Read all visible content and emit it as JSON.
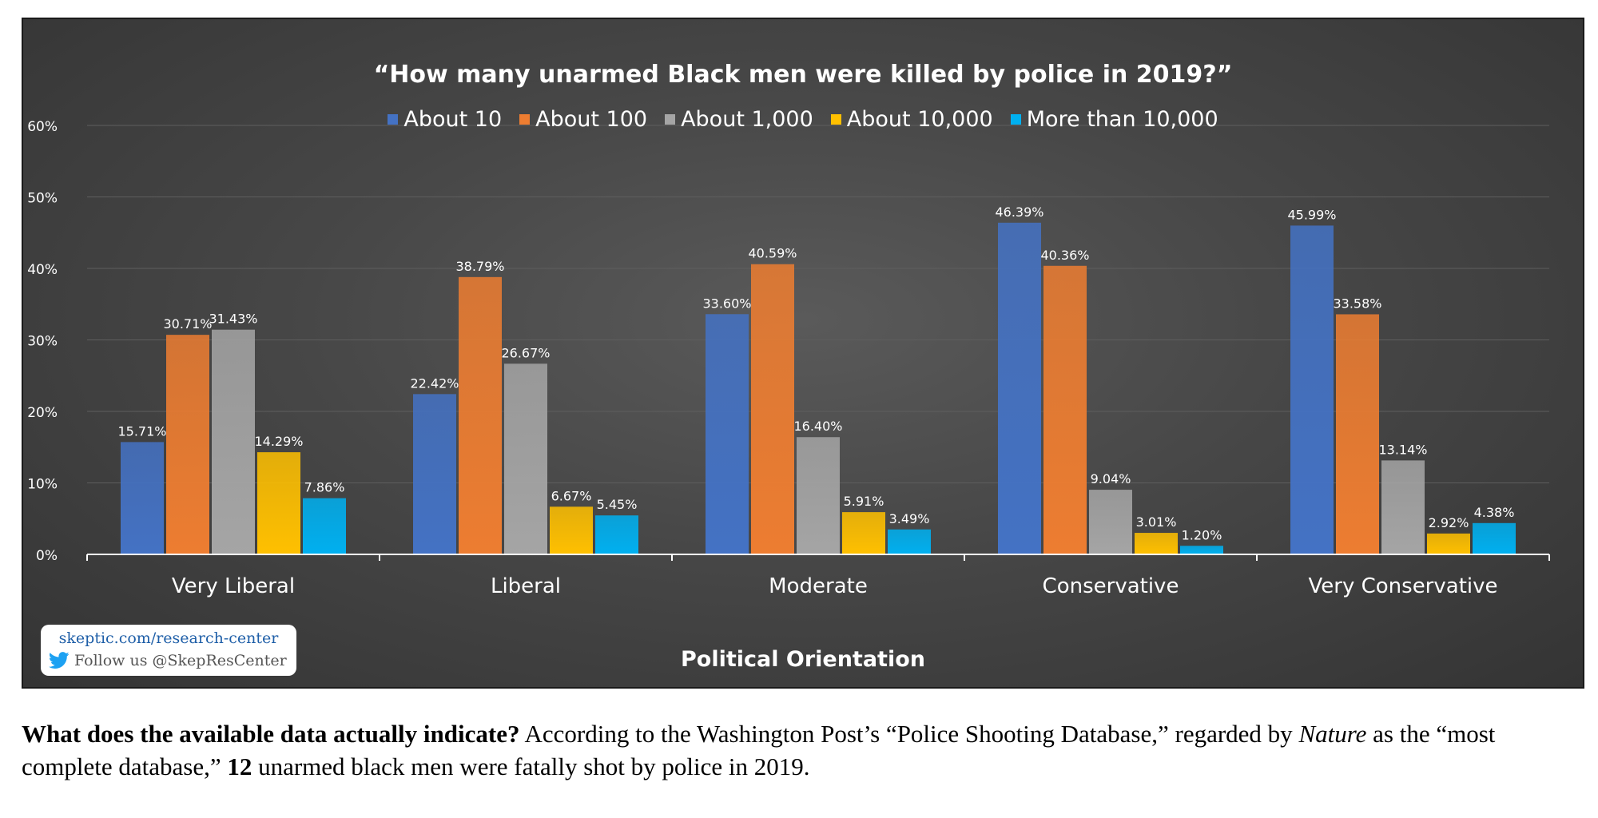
{
  "chart_data": {
    "type": "bar",
    "title": "“How many unarmed Black men were killed by police in 2019?”",
    "xlabel": "Political Orientation",
    "ylabel": "",
    "categories": [
      "Very Liberal",
      "Liberal",
      "Moderate",
      "Conservative",
      "Very Conservative"
    ],
    "series": [
      {
        "name": "About 10",
        "color": "#4472c4",
        "values": [
          15.71,
          22.42,
          33.6,
          46.39,
          45.99
        ]
      },
      {
        "name": "About 100",
        "color": "#ed7d31",
        "values": [
          30.71,
          38.79,
          40.59,
          40.36,
          33.58
        ]
      },
      {
        "name": "About 1,000",
        "color": "#a5a5a5",
        "values": [
          31.43,
          26.67,
          16.4,
          9.04,
          13.14
        ]
      },
      {
        "name": "About 10,000",
        "color": "#ffc000",
        "values": [
          14.29,
          6.67,
          5.91,
          3.01,
          2.92
        ]
      },
      {
        "name": "More than 10,000",
        "color": "#00b0f0",
        "values": [
          7.86,
          5.45,
          3.49,
          1.2,
          4.38
        ]
      }
    ],
    "ylim": [
      0,
      60
    ],
    "yticks": [
      0,
      10,
      20,
      30,
      40,
      50,
      60
    ],
    "ytick_labels": [
      "0%",
      "10%",
      "20%",
      "30%",
      "40%",
      "50%",
      "60%"
    ],
    "data_labels": "percent with two decimals",
    "legend_position": "top",
    "grid": true
  },
  "branding": {
    "url": "skeptic.com/research-center",
    "follow": "Follow us @SkepResCenter",
    "icon": "twitter-bird-icon"
  },
  "caption": {
    "lead": "What does the available data actually indicate?",
    "part1": " According to the Washington Post’s “Police Shooting Database,” regarded by ",
    "italic": "Nature",
    "part2": " as the “most complete database,” ",
    "number": "12",
    "part3": " unarmed black men were fatally shot by police in 2019."
  }
}
